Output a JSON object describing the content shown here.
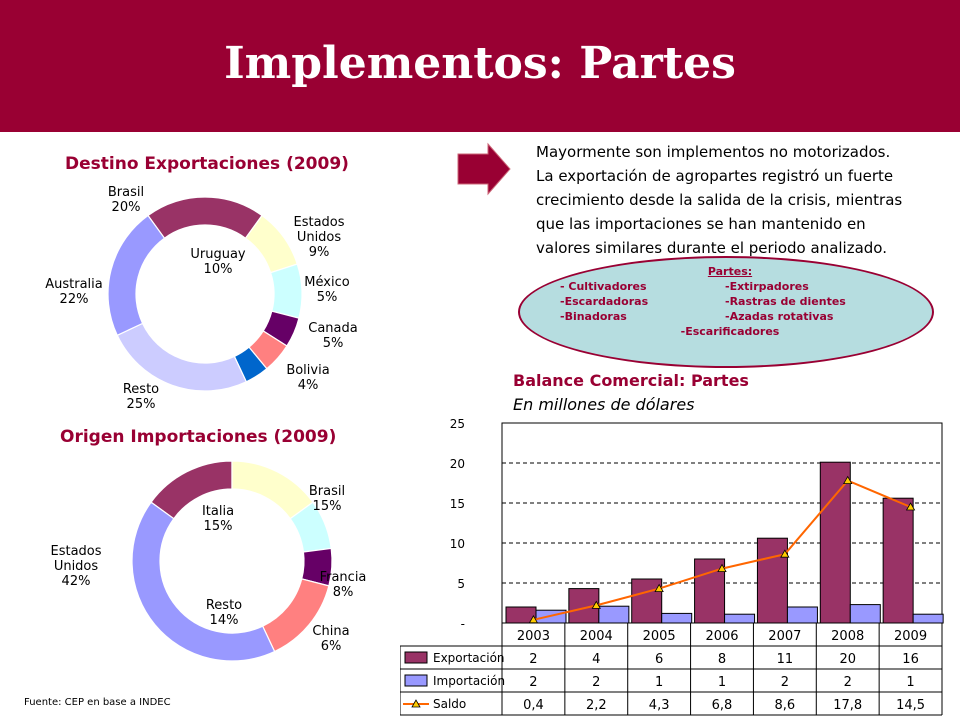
{
  "page": {
    "title": "Implementos: Partes"
  },
  "description": {
    "line1": "Mayormente son implementos no motorizados.",
    "line2": "La exportación de agropartes registró un fuerte",
    "line3": "crecimiento desde la salida de la crisis, mientras",
    "line4": "que las importaciones se han mantenido en",
    "line5": "valores similares durante el periodo analizado."
  },
  "parts": {
    "header": "Partes:",
    "rows": [
      [
        "- Cultivadores",
        "-Extirpadores"
      ],
      [
        "-Escardadoras",
        "-Rastras de dientes"
      ],
      [
        "-Binadoras",
        "-Azadas rotativas"
      ]
    ],
    "last": "-Escarificadores"
  },
  "source": "Fuente: CEP en base a INDEC",
  "colors": {
    "brand": "#990033",
    "export_bar": "#993366",
    "import_bar": "#9999ff",
    "saldo_line": "#ff6600",
    "ellipse": "#b6dde0"
  },
  "chart_data": [
    {
      "type": "donut",
      "title": "Destino Exportaciones (2009)",
      "slices": [
        {
          "name": "Brasil",
          "value": 20,
          "label": "20%",
          "color": "#993366"
        },
        {
          "name": "Uruguay",
          "value": 10,
          "label": "10%",
          "color": "#ffffcc"
        },
        {
          "name": "Estados Unidos",
          "value": 9,
          "label": "9%",
          "color": "#ccffff"
        },
        {
          "name": "México",
          "value": 5,
          "label": "5%",
          "color": "#660066"
        },
        {
          "name": "Canada",
          "value": 5,
          "label": "5%",
          "color": "#ff8080"
        },
        {
          "name": "Bolivia",
          "value": 4,
          "label": "4%",
          "color": "#0066cc"
        },
        {
          "name": "Resto",
          "value": 25,
          "label": "25%",
          "color": "#ccccff"
        },
        {
          "name": "Australia",
          "value": 22,
          "label": "22%",
          "color": "#9999ff"
        }
      ]
    },
    {
      "type": "donut",
      "title": "Origen Importaciones (2009)",
      "slices": [
        {
          "name": "Italia",
          "value": 15,
          "label": "15%",
          "color": "#993366"
        },
        {
          "name": "Brasil",
          "value": 15,
          "label": "15%",
          "color": "#ffffcc"
        },
        {
          "name": "Francia",
          "value": 8,
          "label": "8%",
          "color": "#ccffff"
        },
        {
          "name": "China",
          "value": 6,
          "label": "6%",
          "color": "#660066"
        },
        {
          "name": "Resto",
          "value": 14,
          "label": "14%",
          "color": "#ff8080"
        },
        {
          "name": "Estados Unidos",
          "value": 42,
          "label": "42%",
          "color": "#9999ff"
        }
      ]
    },
    {
      "type": "bar",
      "title": "Balance Comercial: Partes",
      "subtitle": "En millones de dólares",
      "categories": [
        "2003",
        "2004",
        "2005",
        "2006",
        "2007",
        "2008",
        "2009"
      ],
      "ylim": [
        0,
        25
      ],
      "yticks": [
        "-",
        "5",
        "10",
        "15",
        "20",
        "25"
      ],
      "series": [
        {
          "name": "Exportación",
          "type": "bar",
          "values": [
            2,
            4.3,
            5.5,
            8,
            10.6,
            20.1,
            15.6
          ],
          "table": [
            "2",
            "4",
            "6",
            "8",
            "11",
            "20",
            "16"
          ]
        },
        {
          "name": "Importación",
          "type": "bar",
          "values": [
            1.6,
            2.1,
            1.2,
            1.1,
            2,
            2.3,
            1.1
          ],
          "table": [
            "2",
            "2",
            "1",
            "1",
            "2",
            "2",
            "1"
          ]
        },
        {
          "name": "Saldo",
          "type": "line",
          "values": [
            0.4,
            2.2,
            4.3,
            6.8,
            8.6,
            17.8,
            14.5
          ],
          "table": [
            "0,4",
            "2,2",
            "4,3",
            "6,8",
            "8,6",
            "17,8",
            "14,5"
          ]
        }
      ]
    }
  ]
}
